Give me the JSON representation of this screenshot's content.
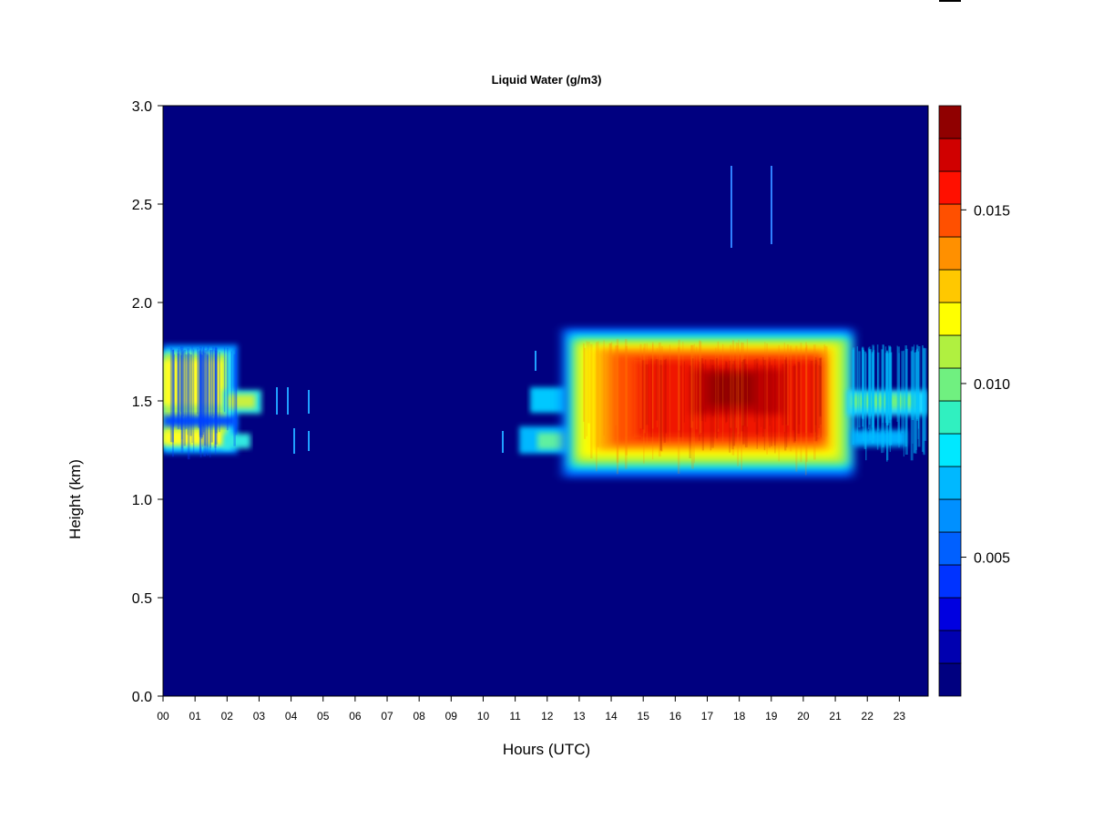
{
  "chart_data": {
    "type": "heatmap",
    "title": "Liquid Water (g/m3)",
    "xlabel": "Hours (UTC)",
    "ylabel": "Height (km)",
    "x_ticks": [
      "00",
      "01",
      "02",
      "03",
      "04",
      "05",
      "06",
      "07",
      "08",
      "09",
      "10",
      "11",
      "12",
      "13",
      "14",
      "15",
      "16",
      "17",
      "18",
      "19",
      "20",
      "21",
      "22",
      "23"
    ],
    "xlim": [
      0,
      23.9
    ],
    "y_ticks": [
      "0.0",
      "0.5",
      "1.0",
      "1.5",
      "2.0",
      "2.5",
      "3.0"
    ],
    "ylim": [
      0,
      3
    ],
    "colorbar": {
      "range": [
        0.001,
        0.018
      ],
      "ticks": [
        "0.005",
        "0.010",
        "0.015"
      ],
      "tick_values": [
        0.005,
        0.01,
        0.015
      ],
      "colors": [
        "#000080",
        "#0000b0",
        "#0000e0",
        "#0033ff",
        "#0060ff",
        "#0090ff",
        "#00b8ff",
        "#00e8ff",
        "#30f0c0",
        "#70f080",
        "#b0f040",
        "#ffff00",
        "#ffc800",
        "#ff9000",
        "#ff5000",
        "#ff1000",
        "#d00000",
        "#900000"
      ]
    },
    "cloud_layers": [
      {
        "x": [
          0.0,
          2.3
        ],
        "y": [
          1.23,
          1.77
        ],
        "peak": 0.011
      },
      {
        "x": [
          2.3,
          3.0
        ],
        "y": [
          1.4,
          1.58
        ],
        "peak": 0.009
      },
      {
        "x": [
          12.5,
          21.4
        ],
        "y": [
          1.13,
          1.86
        ],
        "peak": 0.018
      },
      {
        "x": [
          21.4,
          23.9
        ],
        "y": [
          1.42,
          1.58
        ],
        "peak": 0.008
      }
    ],
    "grid": false,
    "legend": "colorbar-right"
  }
}
